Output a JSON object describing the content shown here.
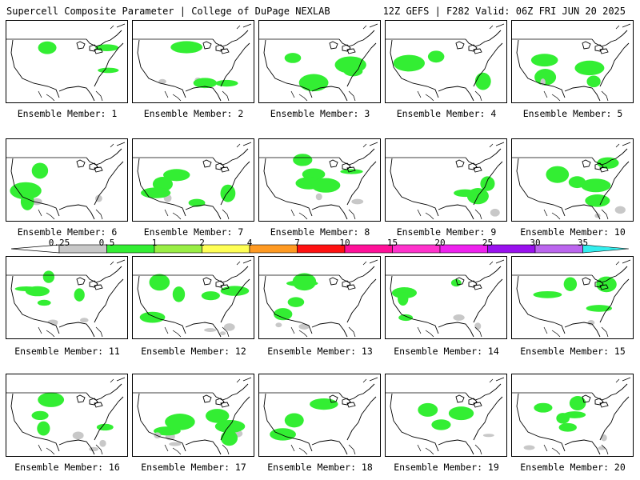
{
  "header": {
    "left_title": "Supercell Composite Parameter | College of DuPage NEXLAB",
    "right_title": "12Z GEFS | F282 Valid: 06Z FRI JUN 20 2025"
  },
  "legend": {
    "ticks": [
      "0.25",
      "0.5",
      "1",
      "2",
      "4",
      "7",
      "10",
      "15",
      "20",
      "25",
      "30",
      "35"
    ],
    "colors": [
      "#c8c8c8",
      "#33ee33",
      "#99ee44",
      "#ffff55",
      "#ff9a22",
      "#ff1111",
      "#ff1199",
      "#ff33cc",
      "#ee22ee",
      "#9911ee",
      "#bb66ee",
      "#33eeee"
    ]
  },
  "members": [
    {
      "label": "Ensemble Member: 1"
    },
    {
      "label": "Ensemble Member: 2"
    },
    {
      "label": "Ensemble Member: 3"
    },
    {
      "label": "Ensemble Member: 4"
    },
    {
      "label": "Ensemble Member: 5"
    },
    {
      "label": "Ensemble Member: 6"
    },
    {
      "label": "Ensemble Member: 7"
    },
    {
      "label": "Ensemble Member: 8"
    },
    {
      "label": "Ensemble Member: 9"
    },
    {
      "label": "Ensemble Member: 10"
    },
    {
      "label": "Ensemble Member: 11"
    },
    {
      "label": "Ensemble Member: 12"
    },
    {
      "label": "Ensemble Member: 13"
    },
    {
      "label": "Ensemble Member: 14"
    },
    {
      "label": "Ensemble Member: 15"
    },
    {
      "label": "Ensemble Member: 16"
    },
    {
      "label": "Ensemble Member: 17"
    },
    {
      "label": "Ensemble Member: 18"
    },
    {
      "label": "Ensemble Member: 19"
    },
    {
      "label": "Ensemble Member: 20"
    }
  ]
}
